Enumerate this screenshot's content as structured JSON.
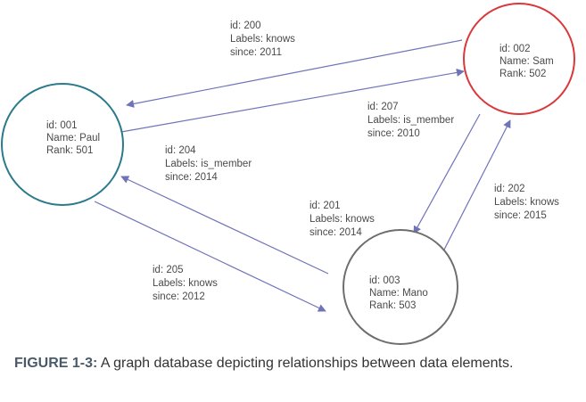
{
  "nodes": [
    {
      "key": "paul",
      "color": "#2a7a8c",
      "lines": [
        "id: 001",
        "Name: Paul",
        "Rank: 501"
      ]
    },
    {
      "key": "sam",
      "color": "#d9393b",
      "lines": [
        "id: 002",
        "Name: Sam",
        "Rank: 502"
      ]
    },
    {
      "key": "mano",
      "color": "#6e6e6e",
      "lines": [
        "id: 003",
        "Name: Mano",
        "Rank: 503"
      ]
    }
  ],
  "edges": [
    {
      "key": "e200",
      "lines": [
        "id: 200",
        "Labels: knows",
        "since: 2011"
      ]
    },
    {
      "key": "e207",
      "lines": [
        "id: 207",
        "Labels: is_member",
        "since: 2010"
      ]
    },
    {
      "key": "e204",
      "lines": [
        "id: 204",
        "Labels: is_member",
        "since: 2014"
      ]
    },
    {
      "key": "e201",
      "lines": [
        "id: 201",
        "Labels: knows",
        "since: 2014"
      ]
    },
    {
      "key": "e202",
      "lines": [
        "id: 202",
        "Labels: knows",
        "since: 2015"
      ]
    },
    {
      "key": "e205",
      "lines": [
        "id: 205",
        "Labels: knows",
        "since: 2012"
      ]
    }
  ],
  "caption": {
    "label": "FIGURE 1-3:",
    "text": "A graph database depicting relationships between data elements."
  },
  "colors": {
    "edge": "#6f73b8"
  }
}
